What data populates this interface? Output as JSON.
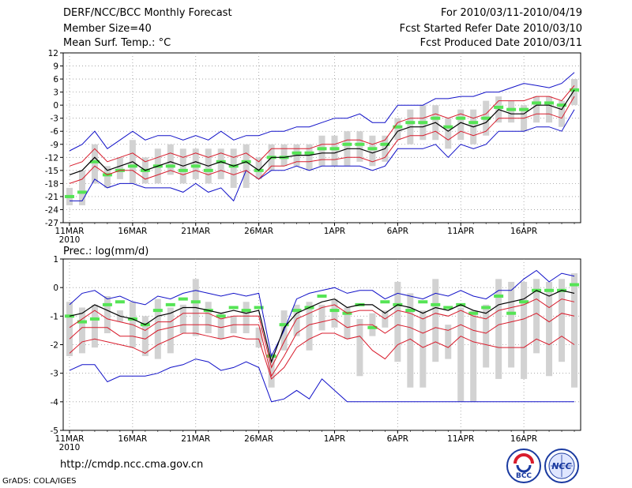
{
  "header": {
    "title": "DERF/NCC/BCC Monthly Forecast",
    "member_size": "Member Size=40",
    "variable": "Mean Surf. Temp.: °C",
    "period": "For 2010/03/11-2010/04/19",
    "fcst_started": "Fcst Started Refer Date 2010/03/10",
    "fcst_produced": "Fcst Produced Date 2010/03/11"
  },
  "precip_label": "Prec.: log(mm/d)",
  "footer": {
    "url": "http://cmdp.ncc.cma.gov.cn",
    "credit": "GrADS: COLA/IGES",
    "logo_bcc_text": "BCC",
    "logo_ncc_text": "NCC"
  },
  "colors": {
    "envelope": "#1010c8",
    "spread": "#d81c2c",
    "ensemble_mean": "#000000",
    "observed": "#55e455",
    "box": "#d2d2d2"
  },
  "chart_data": [
    {
      "type": "line",
      "title": "Mean Surf. Temp.: °C",
      "x_labels": [
        "11MAR",
        "16MAR",
        "21MAR",
        "26MAR",
        "1APR",
        "6APR",
        "11APR",
        "16APR"
      ],
      "x_sublabel": "2010",
      "x_label_days": [
        0,
        5,
        10,
        15,
        21,
        26,
        31,
        36
      ],
      "ylim": [
        -27,
        12
      ],
      "yticks": [
        -27,
        -24,
        -21,
        -18,
        -15,
        -12,
        -9,
        -6,
        -3,
        0,
        3,
        6,
        9,
        12
      ],
      "series": [
        {
          "name": "max",
          "values": [
            -10.5,
            -9,
            -6,
            -10,
            -8,
            -6,
            -8,
            -7,
            -7,
            -8,
            -7,
            -8,
            -6,
            -8,
            -7,
            -7,
            -6,
            -6,
            -5,
            -5,
            -4,
            -3,
            -3,
            -2,
            -4,
            -4,
            0,
            0,
            0,
            1.5,
            1.5,
            2,
            2,
            3,
            3,
            4,
            5,
            4.5,
            4,
            5,
            7.5
          ]
        },
        {
          "name": "upper",
          "values": [
            -14,
            -13,
            -10,
            -13,
            -12,
            -11,
            -13,
            -12,
            -11,
            -12,
            -11,
            -12,
            -11,
            -12,
            -11,
            -13,
            -10,
            -10,
            -10,
            -10,
            -9,
            -9,
            -8,
            -8,
            -9,
            -8,
            -4,
            -3,
            -3,
            -2,
            -3,
            -2,
            -3,
            -2,
            1,
            1,
            1,
            2,
            2,
            1,
            4.5
          ]
        },
        {
          "name": "mean",
          "values": [
            -16,
            -15,
            -12,
            -15,
            -14,
            -13,
            -15,
            -14,
            -13,
            -14,
            -13,
            -14,
            -13,
            -14,
            -13,
            -15,
            -12,
            -12,
            -11.5,
            -11.5,
            -11,
            -11,
            -10,
            -10,
            -11,
            -10,
            -6,
            -5,
            -5,
            -4,
            -6,
            -4,
            -5,
            -4,
            -1,
            -2,
            -2,
            0,
            0,
            -1,
            3.5
          ]
        },
        {
          "name": "lower",
          "values": [
            -18,
            -17,
            -14,
            -16,
            -15,
            -15,
            -17,
            -16,
            -15,
            -16,
            -15,
            -16,
            -15,
            -16,
            -15,
            -17,
            -14,
            -14,
            -13,
            -13,
            -12.5,
            -12.5,
            -12,
            -12,
            -13,
            -12,
            -8,
            -7,
            -7,
            -6,
            -8,
            -6,
            -7,
            -6,
            -3,
            -3,
            -3,
            -2,
            -2,
            -3,
            2
          ]
        },
        {
          "name": "min",
          "values": [
            -22,
            -22,
            -17,
            -19,
            -18,
            -18,
            -19,
            -19,
            -19,
            -20,
            -18,
            -20,
            -19,
            -22,
            -15,
            -17,
            -15,
            -15,
            -14,
            -15,
            -14,
            -14,
            -14,
            -14,
            -15,
            -14,
            -10,
            -10,
            -10,
            -9,
            -12,
            -9,
            -10,
            -9,
            -6,
            -6,
            -6,
            -5,
            -5,
            -6,
            -1
          ]
        },
        {
          "name": "observed",
          "values": [
            -21,
            -20,
            -13,
            -16,
            -15,
            -14,
            -15,
            -14,
            -14,
            -15,
            -14,
            -15,
            -13,
            -14,
            -13,
            -15,
            -12,
            -12,
            -11,
            -11,
            -10,
            -10,
            -9,
            -9,
            -10,
            -9,
            -5,
            -4,
            -4,
            -3,
            -5,
            -3,
            -4,
            -3,
            -0.5,
            -1,
            -1,
            0.5,
            0.5,
            0,
            3.5
          ]
        },
        {
          "name": "box_high",
          "values": [
            -19,
            -15,
            -9,
            -14,
            -12,
            -8,
            -12,
            -10,
            -9,
            -10,
            -10,
            -10,
            -10,
            -10,
            -9,
            -12,
            -9,
            -9,
            -9,
            -9,
            -7,
            -7,
            -6,
            -6,
            -7,
            -7,
            -3,
            -1,
            0,
            0,
            -3,
            -1,
            -1,
            1,
            2,
            1,
            0,
            2,
            2,
            1,
            6
          ]
        },
        {
          "name": "box_low",
          "values": [
            -23,
            -23,
            -18,
            -19,
            -17,
            -18,
            -18,
            -18,
            -16,
            -18,
            -17,
            -18,
            -17,
            -19,
            -19,
            -17,
            -15,
            -14,
            -14,
            -15,
            -14,
            -14,
            -14,
            -13,
            -14,
            -13,
            -8,
            -9,
            -8,
            -8,
            -10,
            -8,
            -9,
            -7,
            -4,
            -4,
            -6,
            -4,
            -4,
            -5,
            0
          ]
        }
      ]
    },
    {
      "type": "line",
      "title": "Prec.: log(mm/d)",
      "x_labels": [
        "11MAR",
        "16MAR",
        "21MAR",
        "26MAR",
        "1APR",
        "6APR",
        "11APR",
        "16APR"
      ],
      "x_sublabel": "2010",
      "x_label_days": [
        0,
        5,
        10,
        15,
        21,
        26,
        31,
        36
      ],
      "ylim": [
        -5,
        1
      ],
      "yticks": [
        -5,
        -4,
        -3,
        -2,
        -1,
        0,
        1
      ],
      "series": [
        {
          "name": "max",
          "values": [
            -0.6,
            -0.2,
            -0.1,
            -0.4,
            -0.3,
            -0.5,
            -0.6,
            -0.3,
            -0.4,
            -0.2,
            -0.1,
            -0.2,
            -0.3,
            -0.2,
            -0.3,
            -0.2,
            -2.4,
            -1.5,
            -0.4,
            -0.2,
            -0.1,
            0,
            -0.2,
            -0.1,
            -0.1,
            -0.4,
            -0.2,
            -0.3,
            -0.4,
            -0.2,
            -0.3,
            -0.1,
            -0.3,
            -0.4,
            -0.1,
            -0.1,
            0.3,
            0.6,
            0.2,
            0.5,
            0.4
          ]
        },
        {
          "name": "upper",
          "values": [
            -1.4,
            -1.1,
            -0.8,
            -1.1,
            -1.2,
            -1.3,
            -1.5,
            -1.2,
            -1.2,
            -0.9,
            -0.9,
            -0.9,
            -1.1,
            -1,
            -1,
            -1,
            -2.8,
            -1.9,
            -1.1,
            -0.9,
            -0.7,
            -0.6,
            -0.9,
            -0.8,
            -0.8,
            -1.1,
            -0.8,
            -0.9,
            -1.1,
            -0.9,
            -1,
            -0.8,
            -1,
            -1.1,
            -0.8,
            -0.7,
            -0.6,
            -0.4,
            -0.7,
            -0.4,
            -0.5
          ]
        },
        {
          "name": "mean",
          "values": [
            -1,
            -0.9,
            -0.6,
            -0.8,
            -1,
            -1.1,
            -1.3,
            -1,
            -0.9,
            -0.7,
            -0.7,
            -0.8,
            -0.9,
            -0.8,
            -0.9,
            -0.8,
            -2.6,
            -1.4,
            -0.9,
            -0.7,
            -0.5,
            -0.4,
            -0.7,
            -0.6,
            -0.6,
            -0.9,
            -0.6,
            -0.7,
            -0.9,
            -0.7,
            -0.8,
            -0.6,
            -0.8,
            -0.9,
            -0.6,
            -0.5,
            -0.4,
            -0.1,
            -0.3,
            -0.1,
            -0.2
          ]
        },
        {
          "name": "lower",
          "values": [
            -1.8,
            -1.4,
            -1.4,
            -1.4,
            -1.7,
            -1.7,
            -1.8,
            -1.5,
            -1.4,
            -1.3,
            -1.3,
            -1.3,
            -1.4,
            -1.3,
            -1.3,
            -1.3,
            -3.1,
            -2.4,
            -1.6,
            -1.3,
            -1.2,
            -1.1,
            -1.4,
            -1.3,
            -1.3,
            -1.6,
            -1.3,
            -1.4,
            -1.6,
            -1.4,
            -1.5,
            -1.3,
            -1.5,
            -1.6,
            -1.3,
            -1.2,
            -1.1,
            -0.9,
            -1.2,
            -0.9,
            -1
          ]
        },
        {
          "name": "lower2",
          "values": [
            -2.3,
            -1.9,
            -1.8,
            -1.9,
            -2,
            -2.1,
            -2.3,
            -2,
            -1.8,
            -1.6,
            -1.6,
            -1.7,
            -1.8,
            -1.7,
            -1.8,
            -1.8,
            -3.2,
            -2.8,
            -2.1,
            -1.8,
            -1.6,
            -1.6,
            -1.8,
            -1.7,
            -2.2,
            -2.5,
            -2,
            -1.8,
            -2.1,
            -1.9,
            -2.1,
            -1.7,
            -1.9,
            -2,
            -2.1,
            -2.1,
            -2.1,
            -1.8,
            -2,
            -1.7,
            -2
          ]
        },
        {
          "name": "min",
          "values": [
            -2.9,
            -2.7,
            -2.7,
            -3.3,
            -3.1,
            -3.1,
            -3.1,
            -3,
            -2.8,
            -2.7,
            -2.5,
            -2.6,
            -2.9,
            -2.8,
            -2.6,
            -2.8,
            -4,
            -3.9,
            -3.6,
            -3.9,
            -3.2,
            -3.6,
            -4,
            -4,
            -4,
            -4,
            -4,
            -4,
            -4,
            -4,
            -4,
            -4,
            -4,
            -4,
            -4,
            -4,
            -4,
            -4,
            -4,
            -4,
            -4
          ]
        },
        {
          "name": "observed",
          "values": [
            -1,
            -1.2,
            -1.1,
            -0.6,
            -0.5,
            -1.1,
            -1.3,
            -0.8,
            -0.6,
            -0.4,
            -0.5,
            -0.8,
            -1,
            -0.7,
            -0.8,
            -0.7,
            -2.4,
            -1.3,
            -0.8,
            -0.7,
            -0.3,
            -0.8,
            -0.9,
            -0.6,
            -1.4,
            -0.5,
            -0.6,
            -0.8,
            -0.5,
            -0.6,
            -0.7,
            -0.6,
            -0.9,
            -0.7,
            -0.3,
            -0.9,
            -0.5,
            -0.1,
            -0.1,
            -0.1,
            0.1
          ]
        },
        {
          "name": "box_high",
          "values": [
            -0.5,
            -0.7,
            -0.6,
            -0.3,
            -0.8,
            -0.5,
            -1,
            -0.4,
            -0.7,
            -0.6,
            0.3,
            -0.5,
            -0.9,
            -1,
            -0.5,
            -1.4,
            -2.3,
            -0.8,
            -0.6,
            -0.5,
            -0.6,
            -0.4,
            -0.7,
            -1.1,
            -0.9,
            -0.8,
            0.2,
            -0.2,
            -0.8,
            0.3,
            -1.3,
            -0.7,
            -0.8,
            -0.6,
            0.3,
            0.2,
            0.2,
            0.3,
            0.2,
            0.3,
            0.5
          ]
        },
        {
          "name": "box_low",
          "values": [
            -2.4,
            -2.3,
            -2.1,
            -1.6,
            -1.2,
            -2.1,
            -2.4,
            -2.5,
            -2.3,
            -1.6,
            -1.7,
            -1.6,
            -1.8,
            -1.6,
            -1.6,
            -2.1,
            -3.5,
            -2.2,
            -1.7,
            -2.2,
            -1.5,
            -1.4,
            -1.8,
            -3.1,
            -1.7,
            -1.4,
            -2.6,
            -3.5,
            -3.5,
            -2.6,
            -2.5,
            -4,
            -4,
            -2.8,
            -3.2,
            -2.8,
            -3.2,
            -2.3,
            -3.1,
            -2.6,
            -3.5
          ]
        }
      ]
    }
  ]
}
